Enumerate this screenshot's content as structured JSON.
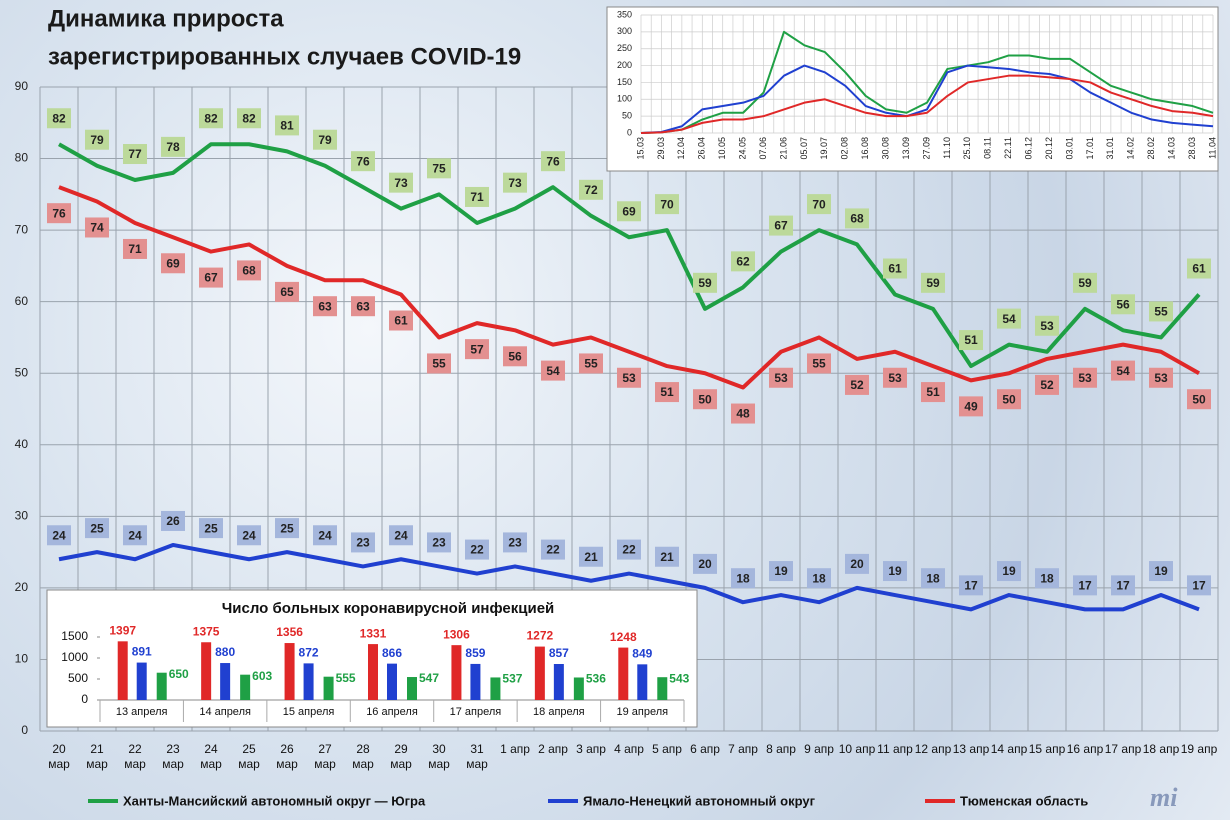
{
  "logo": "mi",
  "chart_data": [
    {
      "type": "line",
      "title": "Динамика прироста",
      "subtitle": "зарегистрированных случаев COVID-19",
      "categories": [
        "20 мар",
        "21 мар",
        "22 мар",
        "23 мар",
        "24 мар",
        "25 мар",
        "26 мар",
        "27 мар",
        "28 мар",
        "29 мар",
        "30 мар",
        "31 мар",
        "1 апр",
        "2 апр",
        "3 апр",
        "4 апр",
        "5 апр",
        "6 апр",
        "7 апр",
        "8 апр",
        "9 апр",
        "10 апр",
        "11 апр",
        "12 апр",
        "13 апр",
        "14 апр",
        "15 апр",
        "16 апр",
        "17 апр",
        "18 апр",
        "19 апр"
      ],
      "series": [
        {
          "name": "Ханты-Мансийский автономный округ — Югра",
          "color": "#1fa045",
          "label_color": "#bcd99a",
          "values": [
            82,
            79,
            77,
            78,
            82,
            82,
            81,
            79,
            76,
            73,
            75,
            71,
            73,
            76,
            72,
            69,
            70,
            59,
            62,
            67,
            70,
            68,
            61,
            59,
            51,
            54,
            53,
            59,
            56,
            55,
            61
          ]
        },
        {
          "name": "Ямало-Ненецкий автономный округ",
          "color": "#2040d0",
          "label_color": "#a4b6dc",
          "values": [
            24,
            25,
            24,
            26,
            25,
            24,
            25,
            24,
            23,
            24,
            23,
            22,
            23,
            22,
            21,
            22,
            21,
            20,
            18,
            19,
            18,
            20,
            19,
            18,
            17,
            19,
            18,
            17,
            17,
            19,
            17
          ]
        },
        {
          "name": "Тюменская область",
          "color": "#e02828",
          "label_color": "#e39090",
          "values": [
            76,
            74,
            71,
            69,
            67,
            68,
            65,
            63,
            63,
            61,
            55,
            57,
            56,
            54,
            55,
            53,
            51,
            50,
            48,
            53,
            55,
            52,
            53,
            51,
            49,
            50,
            52,
            53,
            54,
            53,
            50
          ]
        }
      ],
      "ylim": [
        0,
        90
      ],
      "yticks": [
        0,
        10,
        20,
        30,
        40,
        50,
        60,
        70,
        80,
        90
      ],
      "grid": true,
      "legend": "bottom"
    },
    {
      "type": "line",
      "categories": [
        "15.03",
        "29.03",
        "12.04",
        "26.04",
        "10.05",
        "24.05",
        "07.06",
        "21.06",
        "05.07",
        "19.07",
        "02.08",
        "16.08",
        "30.08",
        "13.09",
        "27.09",
        "11.10",
        "25.10",
        "08.11",
        "22.11",
        "06.12",
        "20.12",
        "03.01",
        "17.01",
        "31.01",
        "14.02",
        "28.02",
        "14.03",
        "28.03",
        "11.04"
      ],
      "series": [
        {
          "color": "#1fa045",
          "values": [
            0,
            2,
            10,
            40,
            60,
            60,
            120,
            300,
            260,
            240,
            180,
            110,
            70,
            60,
            90,
            190,
            200,
            210,
            230,
            230,
            220,
            220,
            180,
            140,
            120,
            100,
            90,
            80,
            60
          ]
        },
        {
          "color": "#2040d0",
          "values": [
            0,
            3,
            20,
            70,
            80,
            90,
            110,
            170,
            200,
            180,
            140,
            80,
            60,
            50,
            70,
            180,
            200,
            195,
            190,
            180,
            175,
            160,
            120,
            90,
            60,
            40,
            30,
            25,
            20
          ]
        },
        {
          "color": "#e02828",
          "values": [
            0,
            2,
            10,
            30,
            40,
            40,
            50,
            70,
            90,
            100,
            80,
            60,
            50,
            50,
            60,
            110,
            150,
            160,
            170,
            170,
            165,
            160,
            150,
            120,
            100,
            80,
            65,
            60,
            50
          ]
        }
      ],
      "ylim": [
        0,
        350
      ],
      "yticks": [
        0,
        50,
        100,
        150,
        200,
        250,
        300,
        350
      ],
      "grid": true
    },
    {
      "type": "bar",
      "title": "Число больных  коронавирусной  инфекцией",
      "categories": [
        "13 апреля",
        "14 апреля",
        "15 апреля",
        "16 апреля",
        "17 апреля",
        "18 апреля",
        "19 апреля"
      ],
      "series": [
        {
          "color": "#e02828",
          "values": [
            1397,
            1375,
            1356,
            1331,
            1306,
            1272,
            1248
          ]
        },
        {
          "color": "#2040d0",
          "values": [
            891,
            880,
            872,
            866,
            859,
            857,
            849
          ]
        },
        {
          "color": "#1fa045",
          "values": [
            650,
            603,
            555,
            547,
            537,
            536,
            543
          ]
        }
      ],
      "ylim": [
        0,
        1500
      ],
      "yticks": [
        0,
        500,
        1000,
        1500
      ]
    }
  ]
}
